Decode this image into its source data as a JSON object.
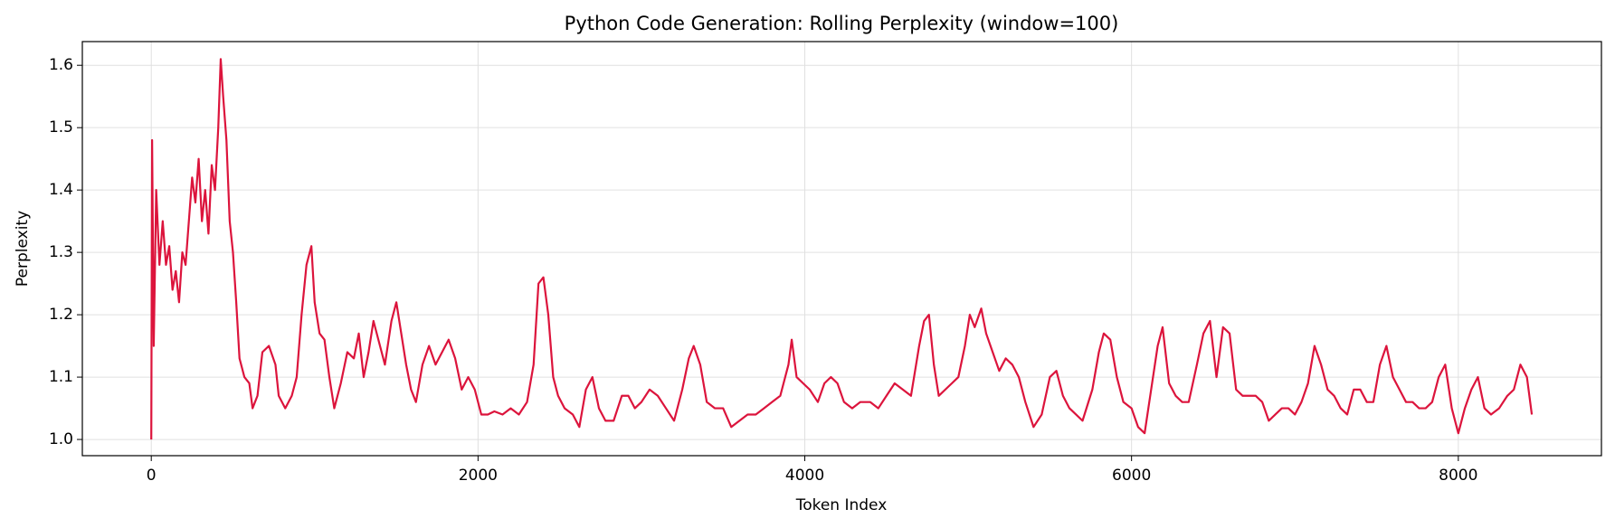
{
  "chart_data": {
    "type": "line",
    "title": "Python Code Generation: Rolling Perplexity (window=100)",
    "x_label": "Token Index",
    "y_label": "Perplexity",
    "x": [
      0,
      5,
      15,
      30,
      50,
      70,
      90,
      110,
      130,
      150,
      170,
      190,
      210,
      230,
      250,
      270,
      290,
      310,
      330,
      350,
      370,
      390,
      410,
      425,
      440,
      460,
      480,
      500,
      520,
      540,
      570,
      600,
      620,
      650,
      680,
      720,
      760,
      780,
      820,
      860,
      890,
      920,
      950,
      980,
      1000,
      1030,
      1060,
      1090,
      1120,
      1160,
      1200,
      1240,
      1270,
      1300,
      1330,
      1360,
      1400,
      1430,
      1470,
      1500,
      1530,
      1560,
      1590,
      1620,
      1660,
      1700,
      1740,
      1780,
      1820,
      1860,
      1900,
      1940,
      1980,
      2020,
      2060,
      2100,
      2150,
      2200,
      2250,
      2300,
      2340,
      2370,
      2400,
      2430,
      2460,
      2490,
      2530,
      2580,
      2620,
      2660,
      2700,
      2740,
      2780,
      2830,
      2880,
      2920,
      2960,
      3000,
      3050,
      3100,
      3150,
      3200,
      3250,
      3290,
      3320,
      3360,
      3400,
      3450,
      3500,
      3550,
      3600,
      3650,
      3700,
      3750,
      3800,
      3850,
      3900,
      3920,
      3950,
      3990,
      4030,
      4080,
      4120,
      4160,
      4200,
      4240,
      4290,
      4340,
      4400,
      4450,
      4500,
      4550,
      4600,
      4650,
      4700,
      4730,
      4760,
      4790,
      4820,
      4860,
      4900,
      4940,
      4980,
      5010,
      5040,
      5080,
      5110,
      5150,
      5190,
      5230,
      5270,
      5310,
      5350,
      5400,
      5450,
      5500,
      5540,
      5580,
      5620,
      5660,
      5700,
      5760,
      5800,
      5830,
      5870,
      5910,
      5950,
      6000,
      6040,
      6080,
      6120,
      6160,
      6190,
      6230,
      6270,
      6310,
      6350,
      6400,
      6440,
      6480,
      6520,
      6560,
      6600,
      6640,
      6680,
      6720,
      6760,
      6800,
      6840,
      6880,
      6920,
      6960,
      7000,
      7040,
      7080,
      7120,
      7160,
      7200,
      7240,
      7280,
      7320,
      7360,
      7400,
      7440,
      7480,
      7520,
      7560,
      7600,
      7640,
      7680,
      7720,
      7760,
      7800,
      7840,
      7880,
      7920,
      7960,
      8000,
      8040,
      8080,
      8120,
      8160,
      8200,
      8250,
      8300,
      8340,
      8380,
      8420,
      8450
    ],
    "values": [
      1.0,
      1.48,
      1.15,
      1.4,
      1.28,
      1.35,
      1.28,
      1.31,
      1.24,
      1.27,
      1.22,
      1.3,
      1.28,
      1.35,
      1.42,
      1.38,
      1.45,
      1.35,
      1.4,
      1.33,
      1.44,
      1.4,
      1.5,
      1.61,
      1.55,
      1.48,
      1.35,
      1.3,
      1.22,
      1.13,
      1.1,
      1.09,
      1.05,
      1.07,
      1.14,
      1.15,
      1.12,
      1.07,
      1.05,
      1.07,
      1.1,
      1.2,
      1.28,
      1.31,
      1.22,
      1.17,
      1.16,
      1.1,
      1.05,
      1.09,
      1.14,
      1.13,
      1.17,
      1.1,
      1.14,
      1.19,
      1.15,
      1.12,
      1.19,
      1.22,
      1.17,
      1.12,
      1.08,
      1.06,
      1.12,
      1.15,
      1.12,
      1.14,
      1.16,
      1.13,
      1.08,
      1.1,
      1.08,
      1.04,
      1.04,
      1.045,
      1.04,
      1.05,
      1.04,
      1.06,
      1.12,
      1.25,
      1.26,
      1.2,
      1.1,
      1.07,
      1.05,
      1.04,
      1.02,
      1.08,
      1.1,
      1.05,
      1.03,
      1.03,
      1.07,
      1.07,
      1.05,
      1.06,
      1.08,
      1.07,
      1.05,
      1.03,
      1.08,
      1.13,
      1.15,
      1.12,
      1.06,
      1.05,
      1.05,
      1.02,
      1.03,
      1.04,
      1.04,
      1.05,
      1.06,
      1.07,
      1.12,
      1.16,
      1.1,
      1.09,
      1.08,
      1.06,
      1.09,
      1.1,
      1.09,
      1.06,
      1.05,
      1.06,
      1.06,
      1.05,
      1.07,
      1.09,
      1.08,
      1.07,
      1.15,
      1.19,
      1.2,
      1.12,
      1.07,
      1.08,
      1.09,
      1.1,
      1.15,
      1.2,
      1.18,
      1.21,
      1.17,
      1.14,
      1.11,
      1.13,
      1.12,
      1.1,
      1.06,
      1.02,
      1.04,
      1.1,
      1.11,
      1.07,
      1.05,
      1.04,
      1.03,
      1.08,
      1.14,
      1.17,
      1.16,
      1.1,
      1.06,
      1.05,
      1.02,
      1.01,
      1.08,
      1.15,
      1.18,
      1.09,
      1.07,
      1.06,
      1.06,
      1.12,
      1.17,
      1.19,
      1.1,
      1.18,
      1.17,
      1.08,
      1.07,
      1.07,
      1.07,
      1.06,
      1.03,
      1.04,
      1.05,
      1.05,
      1.04,
      1.06,
      1.09,
      1.15,
      1.12,
      1.08,
      1.07,
      1.05,
      1.04,
      1.08,
      1.08,
      1.06,
      1.06,
      1.12,
      1.15,
      1.1,
      1.08,
      1.06,
      1.06,
      1.05,
      1.05,
      1.06,
      1.1,
      1.12,
      1.05,
      1.01,
      1.05,
      1.08,
      1.1,
      1.05,
      1.04,
      1.05,
      1.07,
      1.08,
      1.12,
      1.1,
      1.04
    ],
    "color": "#dc143c",
    "xlim": [
      -422,
      8876
    ],
    "xticks": [
      0,
      2000,
      4000,
      6000,
      8000
    ],
    "ylim": [
      0.974,
      1.638
    ],
    "yticks": [
      {
        "value": 1,
        "label": "1.0"
      },
      1.1,
      1.2,
      1.3,
      1.4,
      1.5,
      1.6
    ],
    "grid": true
  }
}
